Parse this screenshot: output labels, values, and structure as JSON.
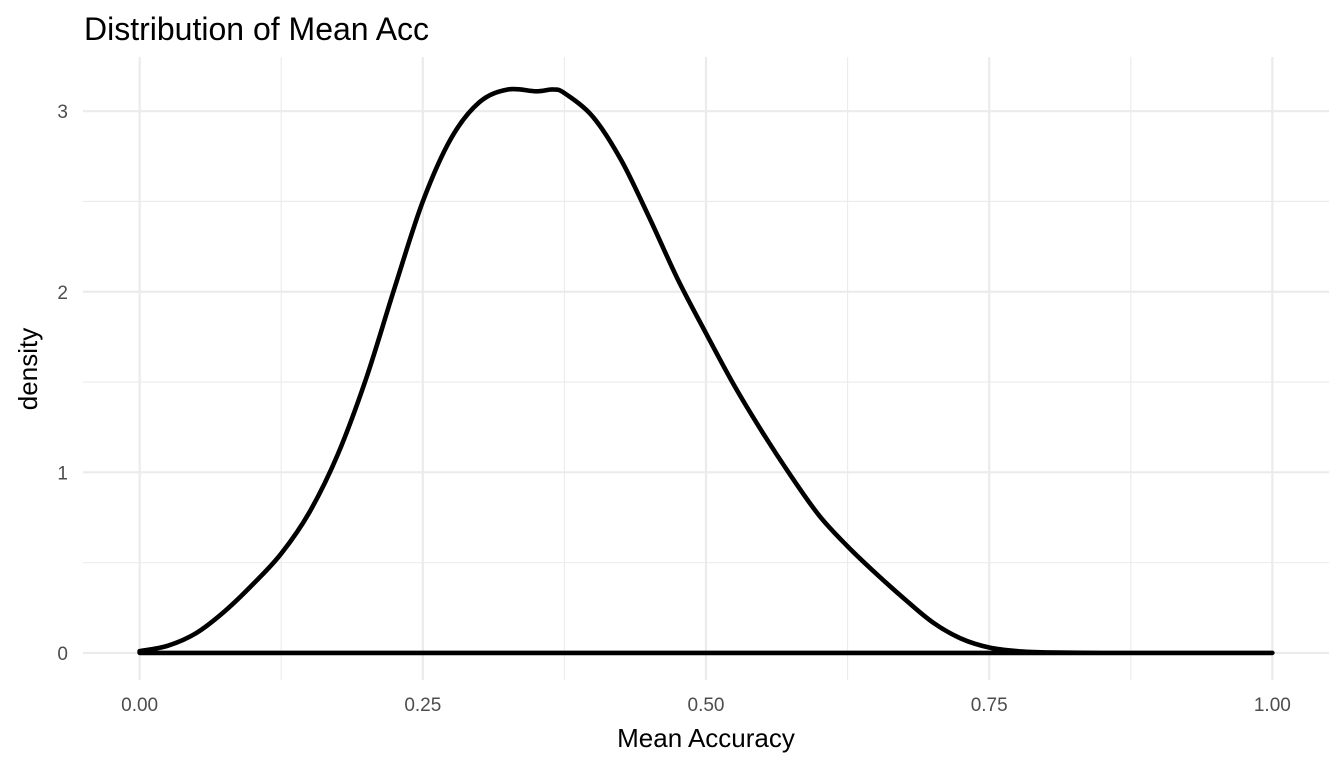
{
  "chart_data": {
    "type": "area",
    "title": "Distribution of Mean Acc",
    "xlabel": "Mean Accuracy",
    "ylabel": "density",
    "xlim": [
      -0.05,
      1.05
    ],
    "ylim": [
      -0.15,
      3.3
    ],
    "x_ticks": [
      0,
      0.25,
      0.5,
      0.75,
      1
    ],
    "x_tick_labels": [
      "0.00",
      "0.25",
      "0.50",
      "0.75",
      "1.00"
    ],
    "y_ticks": [
      0,
      1,
      2,
      3
    ],
    "y_tick_labels": [
      "0",
      "1",
      "2",
      "3"
    ],
    "grid": true,
    "legend": "none",
    "series": [
      {
        "x": [
          0,
          0.025,
          0.05,
          0.075,
          0.1,
          0.125,
          0.15,
          0.175,
          0.2,
          0.225,
          0.25,
          0.275,
          0.3,
          0.325,
          0.35,
          0.365,
          0.375,
          0.4,
          0.425,
          0.45,
          0.475,
          0.5,
          0.525,
          0.55,
          0.575,
          0.6,
          0.625,
          0.65,
          0.675,
          0.7,
          0.725,
          0.75,
          0.775,
          0.8,
          0.85,
          0.9,
          1
        ],
        "y": [
          0.01,
          0.04,
          0.11,
          0.23,
          0.38,
          0.55,
          0.78,
          1.1,
          1.52,
          2.02,
          2.5,
          2.85,
          3.05,
          3.12,
          3.11,
          3.12,
          3.1,
          2.97,
          2.73,
          2.41,
          2.07,
          1.77,
          1.48,
          1.22,
          0.98,
          0.76,
          0.59,
          0.44,
          0.3,
          0.17,
          0.08,
          0.03,
          0.01,
          0.003,
          0.0,
          0.0,
          0.0
        ]
      }
    ],
    "colors": {
      "line": "#000000",
      "grid": "#ebebeb",
      "tick_text": "#4d4d4d",
      "background": "#ffffff"
    }
  }
}
